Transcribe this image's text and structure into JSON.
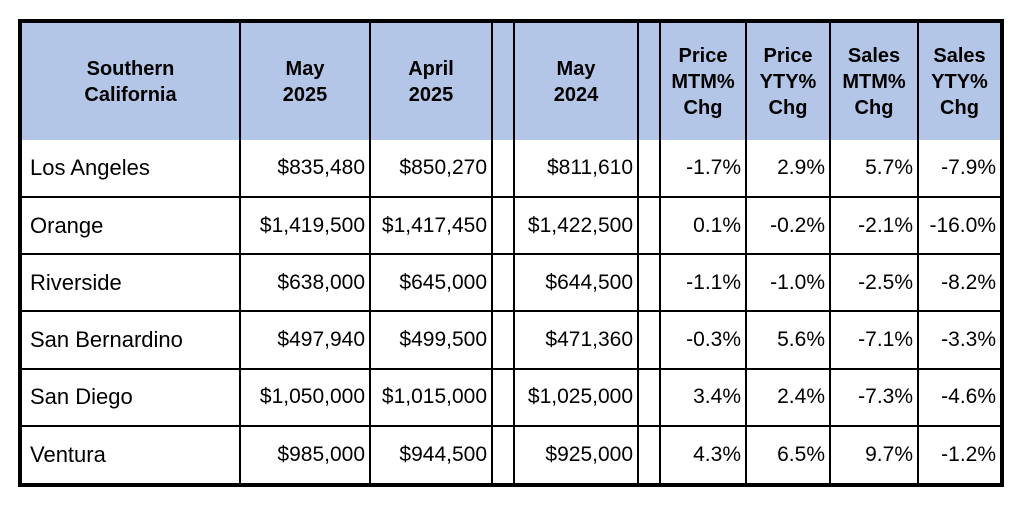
{
  "header": {
    "region_line1": "Southern",
    "region_line2": "California",
    "col_may2025_line1": "May",
    "col_may2025_line2": "2025",
    "col_apr2025_line1": "April",
    "col_apr2025_line2": "2025",
    "col_may2024_line1": "May",
    "col_may2024_line2": "2024",
    "price_mtm_line1": "Price",
    "price_mtm_line2": "MTM%",
    "price_mtm_line3": "Chg",
    "price_yty_line1": "Price",
    "price_yty_line2": "YTY%",
    "price_yty_line3": "Chg",
    "sales_mtm_line1": "Sales",
    "sales_mtm_line2": "MTM%",
    "sales_mtm_line3": "Chg",
    "sales_yty_line1": "Sales",
    "sales_yty_line2": "YTY%",
    "sales_yty_line3": "Chg"
  },
  "rows": [
    {
      "region": "Los Angeles",
      "may2025": "$835,480",
      "apr2025": "$850,270",
      "may2024": "$811,610",
      "price_mtm": "-1.7%",
      "price_yty": "2.9%",
      "sales_mtm": "5.7%",
      "sales_yty": "-7.9%"
    },
    {
      "region": "Orange",
      "may2025": "$1,419,500",
      "apr2025": "$1,417,450",
      "may2024": "$1,422,500",
      "price_mtm": "0.1%",
      "price_yty": "-0.2%",
      "sales_mtm": "-2.1%",
      "sales_yty": "-16.0%"
    },
    {
      "region": "Riverside",
      "may2025": "$638,000",
      "apr2025": "$645,000",
      "may2024": "$644,500",
      "price_mtm": "-1.1%",
      "price_yty": "-1.0%",
      "sales_mtm": "-2.5%",
      "sales_yty": "-8.2%"
    },
    {
      "region": "San Bernardino",
      "may2025": "$497,940",
      "apr2025": "$499,500",
      "may2024": "$471,360",
      "price_mtm": "-0.3%",
      "price_yty": "5.6%",
      "sales_mtm": "-7.1%",
      "sales_yty": "-3.3%"
    },
    {
      "region": "San Diego",
      "may2025": "$1,050,000",
      "apr2025": "$1,015,000",
      "may2024": "$1,025,000",
      "price_mtm": "3.4%",
      "price_yty": "2.4%",
      "sales_mtm": "-7.3%",
      "sales_yty": "-4.6%"
    },
    {
      "region": "Ventura",
      "may2025": "$985,000",
      "apr2025": "$944,500",
      "may2024": "$925,000",
      "price_mtm": "4.3%",
      "price_yty": "6.5%",
      "sales_mtm": "9.7%",
      "sales_yty": "-1.2%"
    }
  ],
  "colors": {
    "header_background": "#b4c6e7",
    "border": "#000000"
  }
}
